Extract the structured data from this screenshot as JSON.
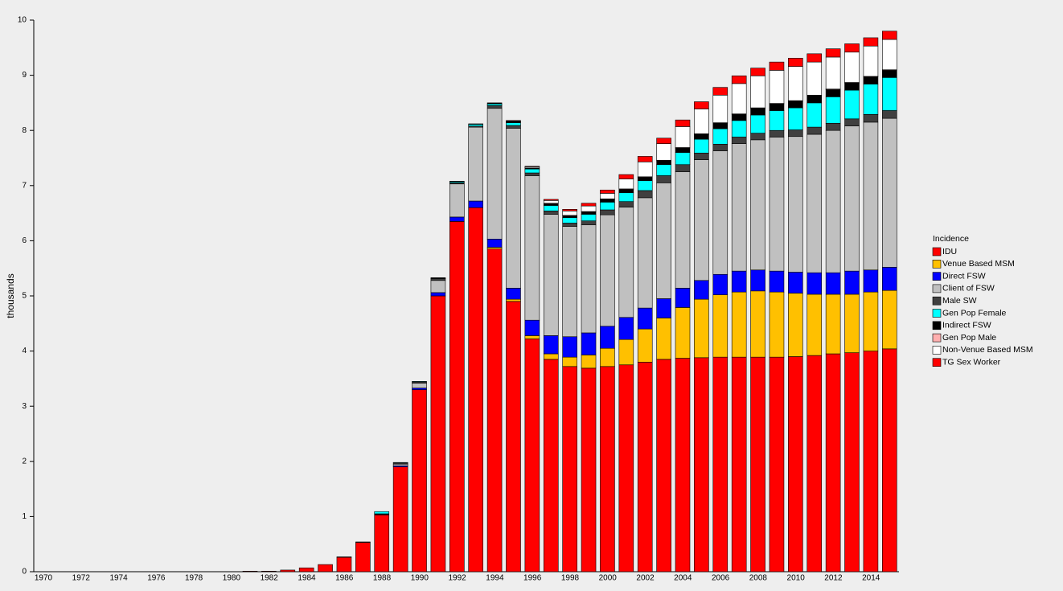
{
  "chart_data": {
    "type": "stacked_bar",
    "y_label": "thousands",
    "legend_title": "Incidence",
    "categories": [
      "1970",
      null,
      "1972",
      null,
      "1974",
      null,
      "1976",
      null,
      "1978",
      null,
      "1980",
      null,
      "1982",
      null,
      "1984",
      null,
      "1986",
      null,
      "1988",
      null,
      "1990",
      null,
      "1992",
      null,
      "1994",
      null,
      "1996",
      null,
      "1998",
      null,
      "2000",
      null,
      "2002",
      null,
      "2004",
      null,
      "2006",
      null,
      "2008",
      null,
      "2010",
      null,
      "2012",
      null,
      "2014",
      null
    ],
    "ylim": [
      0,
      10
    ],
    "yticks": [
      0,
      1,
      2,
      3,
      4,
      5,
      6,
      7,
      8,
      9,
      10
    ],
    "series": [
      {
        "name": "IDU",
        "color": "#ff0000",
        "values": [
          0,
          0,
          0,
          0,
          0,
          0,
          0,
          0,
          0,
          0,
          0,
          0.01,
          0.01,
          0.03,
          0.07,
          0.13,
          0.26,
          0.53,
          1.03,
          1.9,
          3.3,
          5.0,
          6.35,
          6.6,
          5.85,
          4.9,
          4.22,
          3.85,
          3.72,
          3.69,
          3.72,
          3.75,
          3.8,
          3.85,
          3.87,
          3.88,
          3.89,
          3.89,
          3.89,
          3.89,
          3.9,
          3.92,
          3.95,
          3.97,
          4.0,
          4.04
        ]
      },
      {
        "name": "Venue Based MSM",
        "color": "#ffc000",
        "values": [
          0,
          0,
          0,
          0,
          0,
          0,
          0,
          0,
          0,
          0,
          0,
          0,
          0,
          0,
          0,
          0,
          0,
          0,
          0,
          0,
          0,
          0,
          0,
          0,
          0.03,
          0.04,
          0.06,
          0.1,
          0.17,
          0.24,
          0.33,
          0.46,
          0.6,
          0.75,
          0.92,
          1.06,
          1.13,
          1.18,
          1.2,
          1.18,
          1.15,
          1.11,
          1.08,
          1.06,
          1.07,
          1.06
        ]
      },
      {
        "name": "Direct FSW",
        "color": "#0000ff",
        "values": [
          0,
          0,
          0,
          0,
          0,
          0,
          0,
          0,
          0,
          0,
          0,
          0,
          0,
          0,
          0,
          0,
          0,
          0,
          0.01,
          0.02,
          0.03,
          0.06,
          0.08,
          0.12,
          0.15,
          0.2,
          0.28,
          0.33,
          0.37,
          0.4,
          0.4,
          0.4,
          0.38,
          0.35,
          0.35,
          0.34,
          0.37,
          0.38,
          0.38,
          0.38,
          0.38,
          0.39,
          0.39,
          0.42,
          0.4,
          0.42
        ]
      },
      {
        "name": "Client of FSW",
        "color": "#c0c0c0",
        "values": [
          0,
          0,
          0,
          0,
          0,
          0,
          0,
          0,
          0,
          0,
          0,
          0,
          0,
          0,
          0,
          0,
          0.01,
          0.01,
          0.01,
          0.03,
          0.09,
          0.22,
          0.6,
          1.34,
          2.37,
          2.9,
          2.62,
          2.2,
          2.0,
          1.96,
          2.02,
          2.0,
          2.0,
          2.1,
          2.11,
          2.19,
          2.24,
          2.31,
          2.36,
          2.43,
          2.46,
          2.51,
          2.58,
          2.63,
          2.68,
          2.7
        ]
      },
      {
        "name": "Male SW",
        "color": "#404040",
        "values": [
          0,
          0,
          0,
          0,
          0,
          0,
          0,
          0,
          0,
          0,
          0,
          0,
          0,
          0,
          0,
          0,
          0,
          0,
          0,
          0.02,
          0.02,
          0.03,
          0.02,
          0.02,
          0.05,
          0.05,
          0.05,
          0.06,
          0.06,
          0.07,
          0.09,
          0.1,
          0.13,
          0.13,
          0.13,
          0.12,
          0.12,
          0.12,
          0.12,
          0.12,
          0.12,
          0.13,
          0.13,
          0.13,
          0.14,
          0.14
        ]
      },
      {
        "name": "Gen Pop Female",
        "color": "#00ffff",
        "values": [
          0,
          0,
          0,
          0,
          0,
          0,
          0,
          0,
          0,
          0,
          0,
          0,
          0,
          0,
          0,
          0,
          0,
          0,
          0.04,
          0.01,
          0.01,
          0.01,
          0.02,
          0.03,
          0.03,
          0.05,
          0.07,
          0.1,
          0.1,
          0.12,
          0.14,
          0.16,
          0.18,
          0.2,
          0.22,
          0.25,
          0.28,
          0.3,
          0.33,
          0.36,
          0.4,
          0.44,
          0.48,
          0.52,
          0.55,
          0.6
        ]
      },
      {
        "name": "Indirect FSW",
        "color": "#000000",
        "values": [
          0,
          0,
          0,
          0,
          0,
          0,
          0,
          0,
          0,
          0,
          0,
          0,
          0,
          0,
          0,
          0,
          0,
          0,
          0,
          0,
          0,
          0.01,
          0.01,
          0.01,
          0.02,
          0.02,
          0.02,
          0.03,
          0.03,
          0.04,
          0.05,
          0.06,
          0.06,
          0.07,
          0.08,
          0.09,
          0.1,
          0.11,
          0.12,
          0.12,
          0.12,
          0.13,
          0.13,
          0.13,
          0.13,
          0.13
        ]
      },
      {
        "name": "Gen Pop Male",
        "color": "#ffafaf",
        "values": [
          0,
          0,
          0,
          0,
          0,
          0,
          0,
          0,
          0,
          0,
          0,
          0,
          0,
          0,
          0,
          0,
          0,
          0,
          0,
          0,
          0,
          0,
          0,
          0,
          0,
          0,
          0,
          0.01,
          0.01,
          0.01,
          0.01,
          0.01,
          0.01,
          0.01,
          0.01,
          0.01,
          0.01,
          0.01,
          0.01,
          0.01,
          0.01,
          0.01,
          0.01,
          0.01,
          0.01,
          0.01
        ]
      },
      {
        "name": "Non-Venue Based MSM",
        "color": "#ffffff",
        "values": [
          0,
          0,
          0,
          0,
          0,
          0,
          0,
          0,
          0,
          0,
          0,
          0,
          0,
          0,
          0,
          0,
          0,
          0,
          0,
          0,
          0,
          0,
          0,
          0,
          0,
          0.01,
          0.02,
          0.05,
          0.08,
          0.1,
          0.1,
          0.18,
          0.27,
          0.3,
          0.38,
          0.45,
          0.5,
          0.55,
          0.58,
          0.6,
          0.62,
          0.6,
          0.58,
          0.55,
          0.55,
          0.55
        ]
      },
      {
        "name": "TG Sex Worker",
        "color": "#ff0000",
        "values": [
          0,
          0,
          0,
          0,
          0,
          0,
          0,
          0,
          0,
          0,
          0,
          0,
          0,
          0,
          0,
          0,
          0,
          0,
          0,
          0,
          0,
          0,
          0,
          0,
          0,
          0.01,
          0.01,
          0.02,
          0.03,
          0.05,
          0.06,
          0.08,
          0.1,
          0.1,
          0.12,
          0.13,
          0.14,
          0.14,
          0.14,
          0.15,
          0.15,
          0.15,
          0.15,
          0.15,
          0.15,
          0.15
        ]
      }
    ]
  }
}
